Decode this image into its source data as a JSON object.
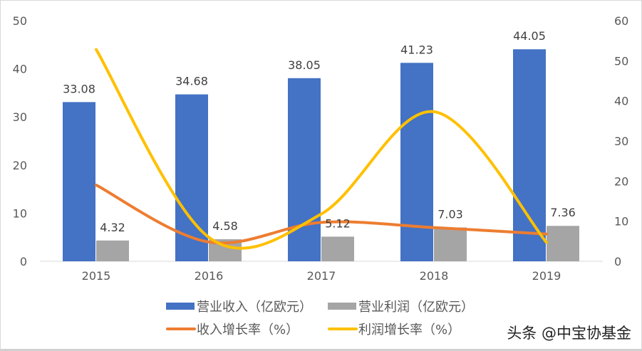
{
  "chart_data": {
    "type": "bar+line",
    "categories": [
      "2015",
      "2016",
      "2017",
      "2018",
      "2019"
    ],
    "series": [
      {
        "name": "营业收入（亿欧元）",
        "type": "bar",
        "axis": "left",
        "color": "#4472C4",
        "values": [
          33.08,
          34.68,
          38.05,
          41.23,
          44.05
        ]
      },
      {
        "name": "营业利润（亿欧元）",
        "type": "bar",
        "axis": "left",
        "color": "#A5A5A5",
        "values": [
          4.32,
          4.58,
          5.12,
          7.03,
          7.36
        ]
      },
      {
        "name": "收入增长率（%）",
        "type": "line",
        "smooth": true,
        "axis": "right",
        "color": "#ED7D31",
        "values": [
          19.0,
          4.8,
          9.7,
          8.4,
          6.8
        ]
      },
      {
        "name": "利润增长率（%）",
        "type": "line",
        "smooth": true,
        "axis": "right",
        "color": "#FFC000",
        "values": [
          52.8,
          6.0,
          11.8,
          37.3,
          4.7
        ]
      }
    ],
    "left_axis": {
      "ylim": [
        0,
        50
      ],
      "ticks": [
        "0",
        "10",
        "20",
        "30",
        "40",
        "50"
      ]
    },
    "right_axis": {
      "ylim": [
        0,
        60
      ],
      "ticks": [
        "0",
        "10",
        "20",
        "30",
        "40",
        "50",
        "60"
      ]
    },
    "data_labels": [
      "33.08",
      "34.68",
      "38.05",
      "41.23",
      "44.05",
      "4.32",
      "4.58",
      "5.12",
      "7.03",
      "7.36"
    ],
    "grid": false,
    "legend": "bottom"
  },
  "watermark": "头条 @中宝协基金"
}
